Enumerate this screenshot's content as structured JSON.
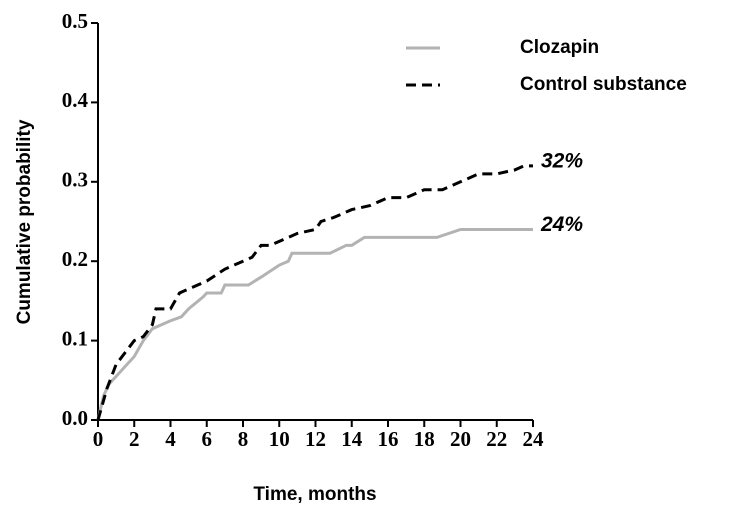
{
  "chart_data": {
    "type": "line",
    "xlabel": "Time, months",
    "ylabel": "Cumulative probability",
    "xlim": [
      0,
      24
    ],
    "ylim": [
      0,
      0.5
    ],
    "xticks": [
      0,
      2,
      4,
      6,
      8,
      10,
      12,
      14,
      16,
      18,
      20,
      22,
      24
    ],
    "yticks": [
      {
        "value": 0,
        "label": "0.0"
      },
      0.1,
      0.2,
      0.3,
      0.4,
      0.5
    ],
    "legend": "upper right",
    "series": [
      {
        "name": "Clozapin",
        "color": "#b3b3b3",
        "dash": false,
        "x": [
          0,
          0.3,
          0.6,
          1,
          2,
          2.5,
          3,
          4,
          4.6,
          5,
          5.8,
          6,
          6.8,
          7,
          8.3,
          9,
          10,
          10.5,
          10.7,
          12.8,
          13.7,
          14,
          14.7,
          18.7,
          20,
          24
        ],
        "values": [
          0,
          0.03,
          0.045,
          0.055,
          0.08,
          0.1,
          0.115,
          0.125,
          0.13,
          0.14,
          0.155,
          0.16,
          0.16,
          0.17,
          0.17,
          0.18,
          0.195,
          0.2,
          0.21,
          0.21,
          0.22,
          0.22,
          0.23,
          0.23,
          0.24,
          0.24
        ]
      },
      {
        "name": "Control substance",
        "color": "#000000",
        "dash": true,
        "x": [
          0,
          0.5,
          1,
          1.5,
          2,
          2.5,
          3,
          3.2,
          4,
          4.5,
          5.5,
          6,
          7,
          8,
          8.5,
          9,
          9.5,
          10,
          10.5,
          11,
          12,
          12.3,
          13,
          14,
          15,
          16,
          17,
          18,
          19,
          20,
          21,
          22,
          23,
          23.5,
          24
        ],
        "values": [
          0,
          0.04,
          0.07,
          0.085,
          0.1,
          0.105,
          0.12,
          0.14,
          0.14,
          0.16,
          0.17,
          0.175,
          0.19,
          0.2,
          0.205,
          0.22,
          0.22,
          0.225,
          0.23,
          0.235,
          0.24,
          0.25,
          0.255,
          0.265,
          0.27,
          0.28,
          0.28,
          0.29,
          0.29,
          0.3,
          0.31,
          0.31,
          0.315,
          0.32,
          0.32
        ]
      }
    ],
    "annotations": [
      "24%",
      "32%"
    ]
  }
}
